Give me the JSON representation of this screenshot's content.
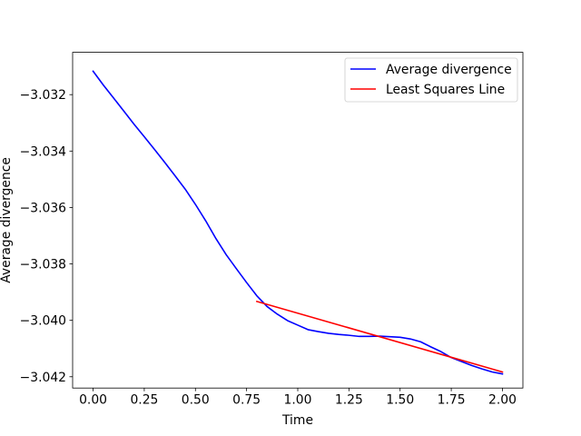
{
  "chart_data": {
    "type": "line",
    "title": "",
    "xlabel": "Time",
    "ylabel": "Average divergence",
    "xlim": [
      -0.1,
      2.1
    ],
    "ylim": [
      -3.0424,
      -3.0305
    ],
    "x_ticks": [
      0.0,
      0.25,
      0.5,
      0.75,
      1.0,
      1.25,
      1.5,
      1.75,
      2.0
    ],
    "x_tick_labels": [
      "0.00",
      "0.25",
      "0.50",
      "0.75",
      "1.00",
      "1.25",
      "1.50",
      "1.75",
      "2.00"
    ],
    "y_ticks": [
      -3.032,
      -3.034,
      -3.036,
      -3.038,
      -3.04,
      -3.042
    ],
    "y_tick_labels": [
      "−3.032",
      "−3.034",
      "−3.036",
      "−3.038",
      "−3.040",
      "−3.042"
    ],
    "grid": false,
    "legend_position": "top-right",
    "series": [
      {
        "name": "Average divergence",
        "color": "#0000ff",
        "x": [
          0.0,
          0.05,
          0.1,
          0.15,
          0.2,
          0.25,
          0.3,
          0.35,
          0.4,
          0.45,
          0.5,
          0.55,
          0.6,
          0.65,
          0.7,
          0.75,
          0.8,
          0.85,
          0.9,
          0.95,
          1.0,
          1.05,
          1.1,
          1.15,
          1.2,
          1.25,
          1.3,
          1.35,
          1.4,
          1.45,
          1.5,
          1.55,
          1.6,
          1.65,
          1.7,
          1.75,
          1.8,
          1.85,
          1.9,
          1.95,
          2.0
        ],
        "y": [
          -3.03117,
          -3.03166,
          -3.03212,
          -3.03258,
          -3.03305,
          -3.03349,
          -3.03394,
          -3.0344,
          -3.03487,
          -3.03535,
          -3.03589,
          -3.03647,
          -3.0371,
          -3.03767,
          -3.03817,
          -3.03866,
          -3.03913,
          -3.03951,
          -3.03978,
          -3.04001,
          -3.04017,
          -3.04033,
          -3.0404,
          -3.04046,
          -3.0405,
          -3.04053,
          -3.04057,
          -3.04057,
          -3.04056,
          -3.04058,
          -3.0406,
          -3.04066,
          -3.04076,
          -3.04094,
          -3.04111,
          -3.04132,
          -3.04146,
          -3.0416,
          -3.04172,
          -3.04183,
          -3.0419
        ]
      },
      {
        "name": "Least Squares Line",
        "color": "#ff0000",
        "x": [
          0.8,
          2.0
        ],
        "y": [
          -3.03933,
          -3.04183
        ]
      }
    ]
  }
}
